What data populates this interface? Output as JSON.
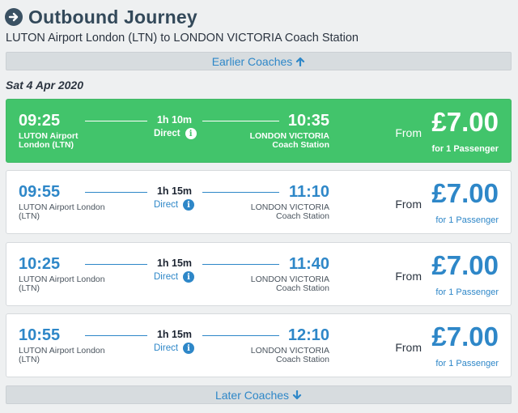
{
  "header": {
    "title": "Outbound Journey",
    "route": "LUTON Airport London (LTN) to LONDON VICTORIA Coach Station"
  },
  "nav": {
    "earlier_label": "Earlier Coaches",
    "later_label": "Later Coaches"
  },
  "date_label": "Sat 4 Apr 2020",
  "colors": {
    "accent_blue": "#2e87c8",
    "selected_green": "#42c46b",
    "title_dark": "#33495a"
  },
  "journeys": [
    {
      "dep_time": "09:25",
      "dep_station": "LUTON Airport London (LTN)",
      "duration": "1h 10m",
      "direct": "Direct",
      "arr_time": "10:35",
      "arr_station": "LONDON VICTORIA Coach Station",
      "from": "From",
      "price": "£7.00",
      "per": "for 1 Passenger",
      "selected": true
    },
    {
      "dep_time": "09:55",
      "dep_station": "LUTON Airport London (LTN)",
      "duration": "1h 15m",
      "direct": "Direct",
      "arr_time": "11:10",
      "arr_station": "LONDON VICTORIA Coach Station",
      "from": "From",
      "price": "£7.00",
      "per": "for 1 Passenger",
      "selected": false
    },
    {
      "dep_time": "10:25",
      "dep_station": "LUTON Airport London (LTN)",
      "duration": "1h 15m",
      "direct": "Direct",
      "arr_time": "11:40",
      "arr_station": "LONDON VICTORIA Coach Station",
      "from": "From",
      "price": "£7.00",
      "per": "for 1 Passenger",
      "selected": false
    },
    {
      "dep_time": "10:55",
      "dep_station": "LUTON Airport London (LTN)",
      "duration": "1h 15m",
      "direct": "Direct",
      "arr_time": "12:10",
      "arr_station": "LONDON VICTORIA Coach Station",
      "from": "From",
      "price": "£7.00",
      "per": "for 1 Passenger",
      "selected": false
    }
  ]
}
